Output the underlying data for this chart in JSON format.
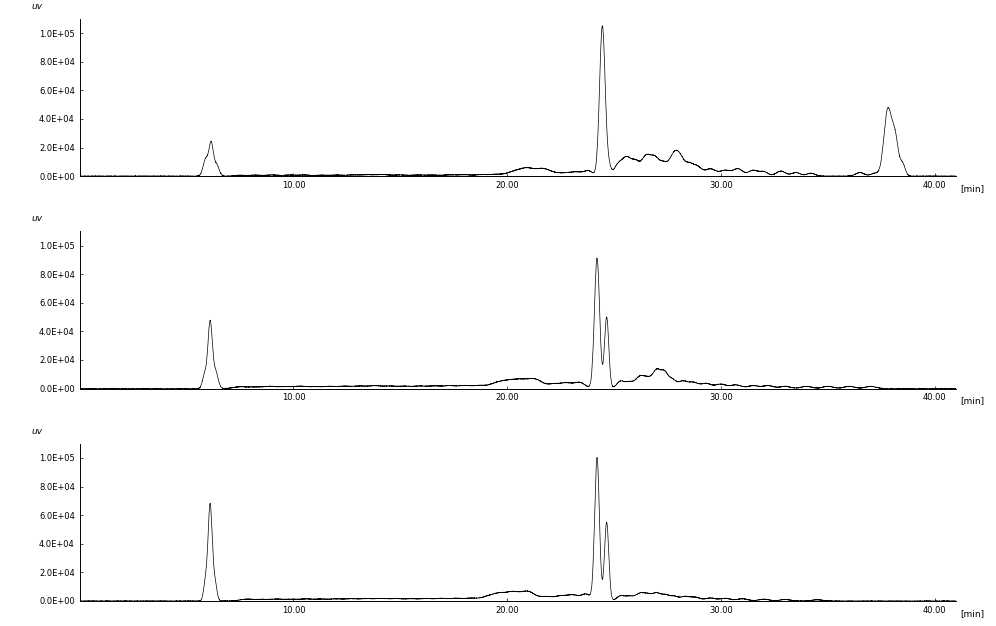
{
  "background_color": "#ffffff",
  "line_color": "#000000",
  "ylabel": "uv",
  "xlabel_min": "[min]",
  "xlim": [
    0,
    41
  ],
  "ylim": [
    0,
    110000
  ],
  "yticks": [
    0,
    20000,
    40000,
    60000,
    80000,
    100000
  ],
  "ytick_labels": [
    "0.0E+00",
    "2.0E+04",
    "4.0E+04",
    "6.0E+04",
    "8.0E+04",
    "1.0E+05"
  ],
  "xticks": [
    0,
    10.0,
    20.0,
    30.0,
    40.0
  ],
  "xtick_labels": [
    "",
    "10.00",
    "20.00",
    "30.00",
    "40.00"
  ]
}
